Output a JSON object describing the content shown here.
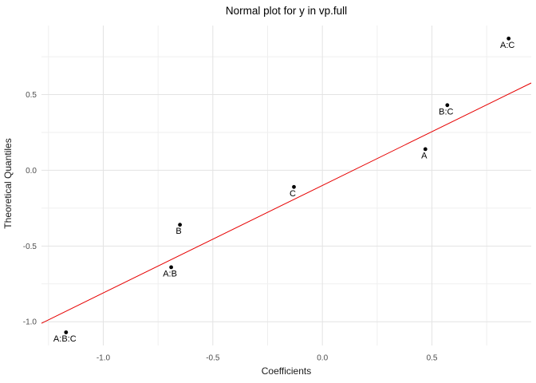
{
  "chart_data": {
    "type": "scatter",
    "title": "Normal plot for y in vp.full",
    "xlabel": "Coefficients",
    "ylabel": "Theoretical Quantiles",
    "xlim": [
      -1.282,
      0.953
    ],
    "ylim": [
      -1.157,
      0.956
    ],
    "x_major_ticks": [
      -1.0,
      -0.5,
      0.0,
      0.5
    ],
    "x_minor_ticks": [
      -1.25,
      -0.75,
      -0.25,
      0.25,
      0.75
    ],
    "y_major_ticks": [
      0.5,
      0.0,
      -0.5,
      -1.0
    ],
    "y_minor_ticks": [
      0.75,
      0.25,
      -0.25,
      -0.75
    ],
    "grid": true,
    "legend": false,
    "points": [
      {
        "label": "A:B:C",
        "x": -1.17,
        "y": -1.07
      },
      {
        "label": "A:B",
        "x": -0.69,
        "y": -0.64
      },
      {
        "label": "B",
        "x": -0.65,
        "y": -0.36
      },
      {
        "label": "C",
        "x": -0.13,
        "y": -0.11
      },
      {
        "label": "A",
        "x": 0.47,
        "y": 0.14
      },
      {
        "label": "B:C",
        "x": 0.57,
        "y": 0.43
      },
      {
        "label": "A:C",
        "x": 0.85,
        "y": 0.87
      }
    ],
    "reference_line": {
      "slope": 0.71,
      "intercept": -0.1
    },
    "colors": {
      "background": "#ffffff",
      "reference_line": "#e60000",
      "grid_major": "#e3e3e3",
      "grid_minor": "#efefef",
      "point": "#000000",
      "tick_label": "#4d4d4d",
      "axis_title": "#1a1a1a",
      "title": "#000000"
    }
  }
}
